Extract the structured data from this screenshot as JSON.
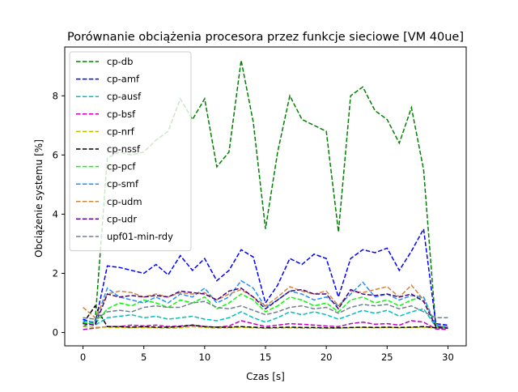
{
  "chart_data": {
    "type": "line",
    "title": "Porównanie obciążenia procesora przez funkcje sieciowe [VM 40ue]",
    "xlabel": "Czas [s]",
    "ylabel": "Obciążenie systemu [%]",
    "xlim": [
      -1.5,
      31.5
    ],
    "ylim": [
      -0.45,
      9.65
    ],
    "xticks": [
      0,
      5,
      10,
      15,
      20,
      25,
      30
    ],
    "yticks": [
      0,
      2,
      4,
      6,
      8
    ],
    "grid": false,
    "legend_position": "upper-left",
    "line_style": "dashed",
    "x": [
      0,
      1,
      2,
      3,
      4,
      5,
      6,
      7,
      8,
      9,
      10,
      11,
      12,
      13,
      14,
      15,
      16,
      17,
      18,
      19,
      20,
      21,
      22,
      23,
      24,
      25,
      26,
      27,
      28,
      29,
      30
    ],
    "series": [
      {
        "name": "cp-db",
        "color": "#008000",
        "values": [
          0.2,
          0.4,
          5.9,
          6.1,
          6.0,
          6.1,
          6.5,
          6.8,
          7.9,
          7.2,
          7.9,
          5.6,
          6.1,
          9.2,
          7.1,
          3.5,
          6.1,
          8.0,
          7.2,
          7.0,
          6.8,
          3.4,
          8.0,
          8.3,
          7.5,
          7.2,
          6.4,
          7.6,
          5.5,
          0.2,
          0.15
        ]
      },
      {
        "name": "cp-amf",
        "color": "#0000ff",
        "values": [
          0.45,
          0.3,
          2.25,
          2.2,
          2.1,
          2.0,
          2.3,
          1.95,
          2.6,
          2.1,
          2.5,
          1.75,
          2.1,
          2.8,
          2.55,
          1.0,
          1.6,
          2.5,
          2.3,
          2.65,
          2.5,
          1.2,
          2.5,
          2.8,
          2.7,
          2.85,
          2.1,
          2.75,
          3.5,
          0.3,
          0.25
        ]
      },
      {
        "name": "cp-ausf",
        "color": "#00bfbf",
        "values": [
          0.3,
          0.25,
          0.5,
          0.55,
          0.6,
          0.5,
          0.55,
          0.45,
          0.5,
          0.55,
          0.45,
          0.4,
          0.5,
          0.7,
          0.5,
          0.35,
          0.5,
          0.7,
          0.6,
          0.7,
          0.6,
          0.45,
          0.6,
          0.75,
          0.65,
          0.75,
          0.55,
          0.7,
          0.8,
          0.2,
          0.15
        ]
      },
      {
        "name": "cp-bsf",
        "color": "#bf00bf",
        "values": [
          0.1,
          0.15,
          0.2,
          0.2,
          0.25,
          0.22,
          0.25,
          0.2,
          0.22,
          0.25,
          0.2,
          0.18,
          0.22,
          0.4,
          0.3,
          0.2,
          0.25,
          0.3,
          0.28,
          0.25,
          0.22,
          0.2,
          0.3,
          0.35,
          0.28,
          0.3,
          0.25,
          0.4,
          0.35,
          0.12,
          0.1
        ]
      },
      {
        "name": "cp-nrf",
        "color": "#bfbf00",
        "values": [
          0.2,
          0.18,
          0.18,
          0.17,
          0.16,
          0.17,
          0.16,
          0.15,
          0.16,
          0.2,
          0.17,
          0.15,
          0.16,
          0.18,
          0.16,
          0.14,
          0.15,
          0.16,
          0.15,
          0.15,
          0.14,
          0.15,
          0.16,
          0.17,
          0.16,
          0.17,
          0.16,
          0.17,
          0.18,
          0.15,
          0.14
        ]
      },
      {
        "name": "cp-nssf",
        "color": "#000000",
        "values": [
          0.3,
          0.9,
          0.2,
          0.2,
          0.18,
          0.2,
          0.18,
          0.18,
          0.2,
          0.25,
          0.2,
          0.18,
          0.18,
          0.2,
          0.18,
          0.16,
          0.17,
          0.18,
          0.17,
          0.17,
          0.16,
          0.16,
          0.17,
          0.18,
          0.17,
          0.18,
          0.17,
          0.18,
          0.2,
          0.16,
          0.15
        ]
      },
      {
        "name": "cp-pcf",
        "color": "#00ff00",
        "values": [
          0.35,
          0.3,
          0.8,
          1.0,
          0.9,
          1.1,
          1.0,
          0.85,
          1.1,
          1.0,
          1.2,
          0.8,
          1.0,
          1.3,
          1.1,
          0.7,
          0.9,
          1.2,
          1.1,
          0.9,
          1.0,
          0.7,
          1.1,
          1.2,
          1.0,
          1.1,
          0.9,
          1.1,
          1.2,
          0.2,
          0.15
        ]
      },
      {
        "name": "cp-smf",
        "color": "#1e90ff",
        "values": [
          0.4,
          0.35,
          1.5,
          1.2,
          1.1,
          1.0,
          1.2,
          1.0,
          1.3,
          1.2,
          1.5,
          1.0,
          1.2,
          1.75,
          1.5,
          0.85,
          1.1,
          1.4,
          1.3,
          1.1,
          1.2,
          0.9,
          1.3,
          1.7,
          1.2,
          1.3,
          1.1,
          1.25,
          1.2,
          0.25,
          0.2
        ]
      },
      {
        "name": "cp-udm",
        "color": "#cd853f",
        "values": [
          0.85,
          0.5,
          1.3,
          1.4,
          1.35,
          1.2,
          1.3,
          1.2,
          1.35,
          1.3,
          1.35,
          1.1,
          1.3,
          1.45,
          1.2,
          0.9,
          1.2,
          1.55,
          1.4,
          1.3,
          1.4,
          0.9,
          1.4,
          1.35,
          1.45,
          1.55,
          1.2,
          1.6,
          1.1,
          0.2,
          0.2
        ]
      },
      {
        "name": "cp-udr",
        "color": "#4b0082",
        "values": [
          0.3,
          0.25,
          1.3,
          1.2,
          1.25,
          1.2,
          1.25,
          1.2,
          1.4,
          1.35,
          1.3,
          1.1,
          1.4,
          1.5,
          1.2,
          0.8,
          1.1,
          1.4,
          1.45,
          1.3,
          1.3,
          0.8,
          1.45,
          1.3,
          1.25,
          1.3,
          1.2,
          1.3,
          1.05,
          0.2,
          0.15
        ]
      },
      {
        "name": "upf01-min-rdy",
        "color": "#708090",
        "values": [
          0.5,
          0.45,
          0.7,
          0.75,
          0.7,
          0.85,
          0.9,
          0.85,
          0.85,
          1.0,
          1.05,
          0.85,
          0.8,
          0.9,
          0.75,
          0.6,
          0.7,
          0.85,
          0.9,
          0.8,
          0.85,
          0.65,
          0.85,
          0.95,
          0.9,
          0.95,
          0.8,
          0.9,
          0.7,
          0.5,
          0.5
        ]
      }
    ]
  }
}
